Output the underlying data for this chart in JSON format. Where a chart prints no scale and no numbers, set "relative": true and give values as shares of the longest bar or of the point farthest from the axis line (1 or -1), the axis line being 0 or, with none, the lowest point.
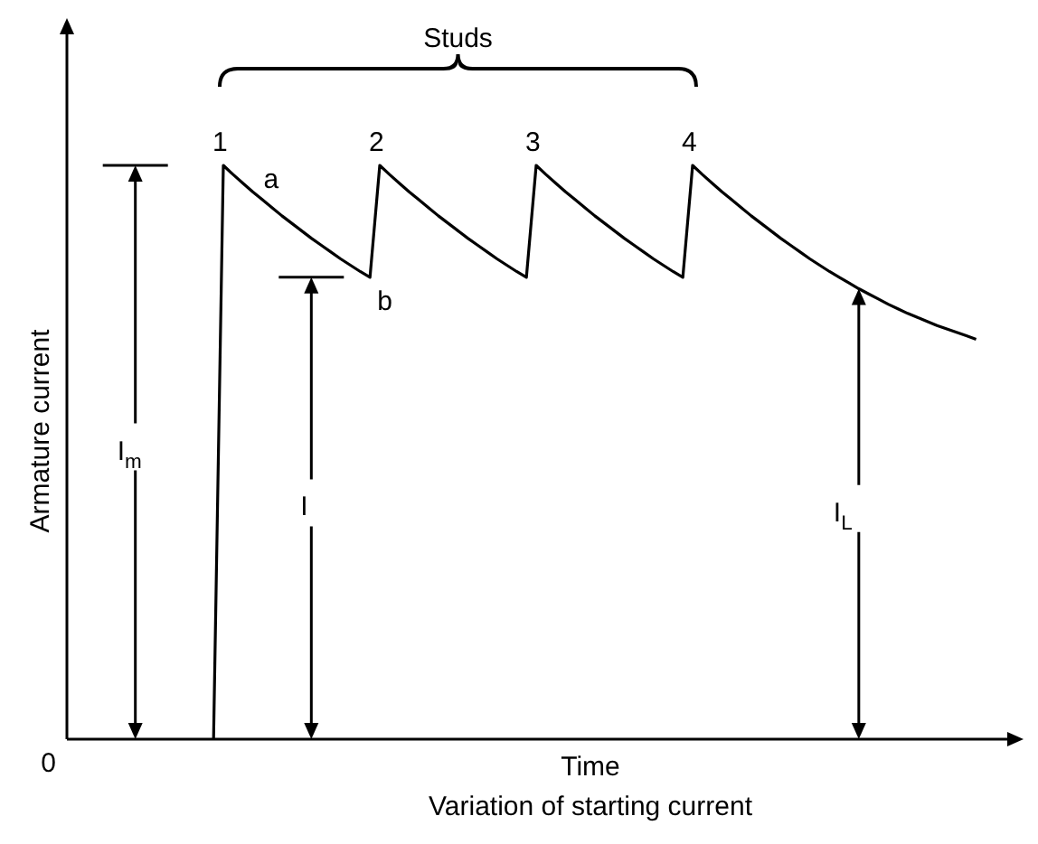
{
  "chart_data": {
    "type": "line",
    "relative": true,
    "title": "Variation of starting current",
    "xlabel": "Time",
    "ylabel": "Armature current",
    "tick_labels": false,
    "legend": false,
    "marker": "none",
    "line_style": "solid",
    "categories": [
      null,
      null,
      null,
      null,
      null,
      null,
      null,
      null,
      null,
      null,
      null,
      null,
      null,
      null,
      null,
      null,
      null,
      null,
      null,
      null,
      null,
      null,
      null,
      null,
      null,
      null,
      null,
      null,
      null,
      null,
      null,
      null,
      null,
      null,
      null,
      null,
      null,
      null,
      null,
      null,
      null,
      null,
      null,
      null,
      null,
      null,
      null,
      null,
      null,
      null,
      null,
      null,
      null,
      null,
      null,
      null,
      null,
      null,
      null,
      null,
      null,
      null,
      null,
      null,
      null,
      null,
      null,
      null,
      null,
      null,
      null,
      null,
      null,
      null,
      null,
      null,
      null,
      null,
      null,
      null,
      null,
      null,
      null,
      null,
      null,
      null,
      null,
      null,
      null,
      null,
      null,
      null,
      null,
      null,
      null,
      null,
      null
    ],
    "series": [
      {
        "color": "#000000",
        "values": [
          null,
          null,
          null,
          null,
          null,
          null,
          null,
          null,
          null,
          null,
          null,
          null,
          null,
          null,
          null,
          0,
          1,
          0.984,
          0.969,
          0.954,
          0.94,
          0.926,
          0.912,
          0.899,
          0.886,
          0.873,
          0.861,
          0.849,
          0.837,
          0.826,
          0.815,
          0.805,
          1,
          0.984,
          0.969,
          0.954,
          0.94,
          0.926,
          0.912,
          0.899,
          0.886,
          0.873,
          0.861,
          0.849,
          0.837,
          0.826,
          0.815,
          0.805,
          1,
          0.984,
          0.969,
          0.954,
          0.94,
          0.926,
          0.912,
          0.899,
          0.886,
          0.873,
          0.861,
          0.849,
          0.837,
          0.826,
          0.815,
          0.805,
          1,
          0.984,
          0.969,
          0.954,
          0.94,
          0.926,
          0.912,
          0.899,
          0.886,
          0.873,
          0.861,
          0.849,
          0.837,
          0.826,
          0.815,
          0.805,
          0.795,
          0.785,
          0.776,
          0.767,
          0.758,
          0.75,
          0.742,
          0.735,
          0.728,
          0.721,
          0.715,
          0.709,
          0.703,
          0.697,
          null,
          null,
          null
        ]
      }
    ],
    "annotations": [
      "Studs",
      "1",
      "2",
      "3",
      "4",
      "a",
      "b",
      "I$_{m}$",
      "I",
      "I$_{L}$",
      "0"
    ]
  }
}
